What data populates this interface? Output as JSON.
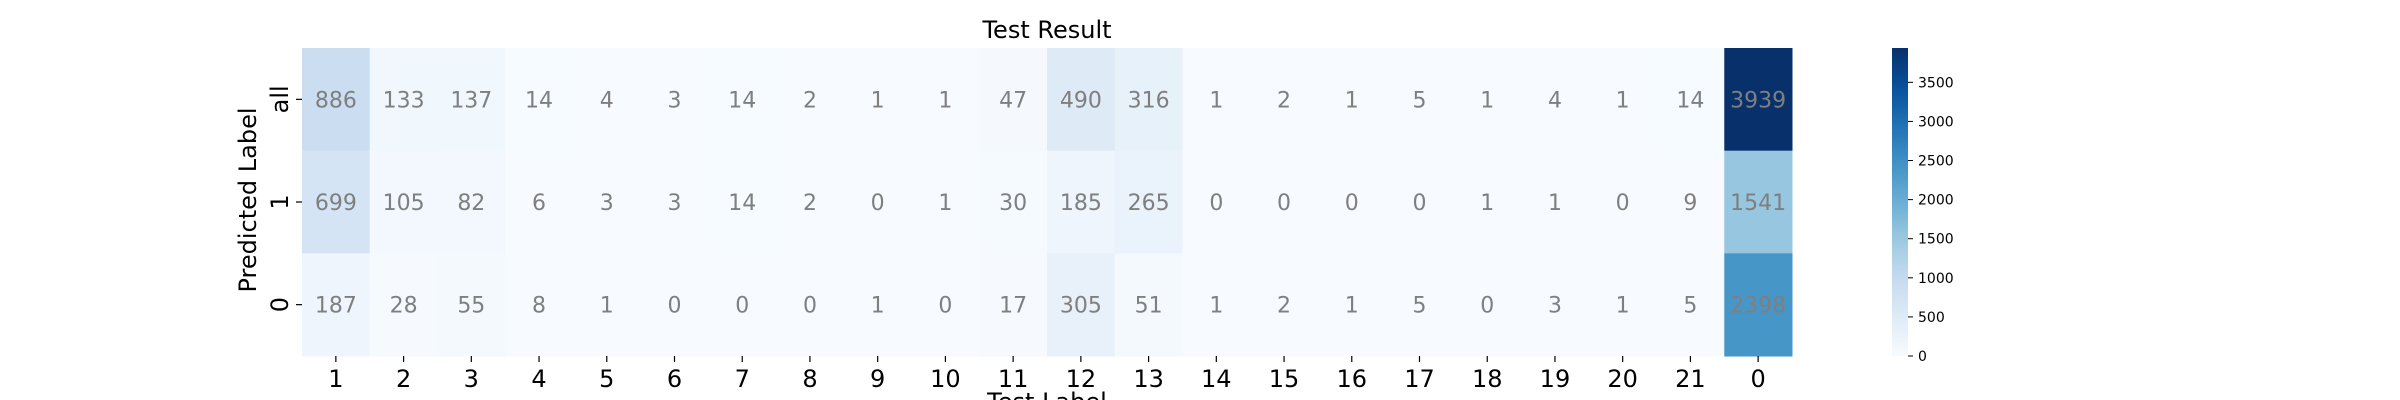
{
  "chart_data": {
    "type": "heatmap",
    "title": "Test Result",
    "xlabel": "Test Label",
    "ylabel": "Predicted Label",
    "x_categories": [
      "1",
      "2",
      "3",
      "4",
      "5",
      "6",
      "7",
      "8",
      "9",
      "10",
      "11",
      "12",
      "13",
      "14",
      "15",
      "16",
      "17",
      "18",
      "19",
      "20",
      "21",
      "0"
    ],
    "y_categories": [
      "all",
      "1",
      "0"
    ],
    "values": [
      [
        886,
        133,
        137,
        14,
        4,
        3,
        14,
        2,
        1,
        1,
        47,
        490,
        316,
        1,
        2,
        1,
        5,
        1,
        4,
        1,
        14,
        3939
      ],
      [
        699,
        105,
        82,
        6,
        3,
        3,
        14,
        2,
        0,
        1,
        30,
        185,
        265,
        0,
        0,
        0,
        0,
        1,
        1,
        0,
        9,
        1541
      ],
      [
        187,
        28,
        55,
        8,
        1,
        0,
        0,
        0,
        1,
        0,
        17,
        305,
        51,
        1,
        2,
        1,
        5,
        0,
        3,
        1,
        5,
        2398
      ]
    ],
    "colormap": "Blues",
    "colorbar": {
      "range": [
        0,
        3939
      ],
      "ticks": [
        0,
        500,
        1000,
        1500,
        2000,
        2500,
        3000,
        3500
      ]
    },
    "colors": {
      "cell_text": "#7f7f7f"
    }
  }
}
